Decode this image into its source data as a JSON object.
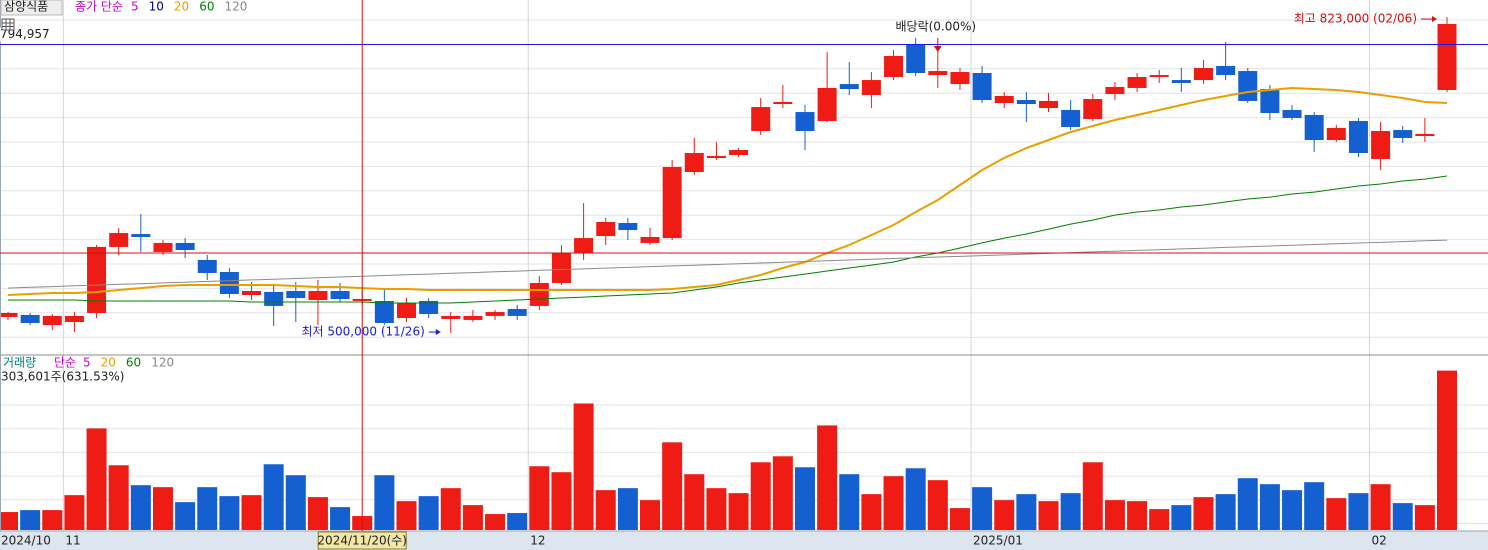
{
  "title": "삼양식품",
  "price_legend_label": "종가 단순",
  "chart_data": [
    {
      "type": "candlestick",
      "ylim": [
        478600,
        840400
      ],
      "up_color": "#ee1c14",
      "down_color": "#1560d0",
      "legend": [
        "5",
        "10",
        "20",
        "60",
        "120"
      ],
      "legend_colors": [
        "#cc00cc",
        "#000080",
        "#e8a000",
        "#008000",
        "#8a8a8a"
      ],
      "open": [
        516400,
        518500,
        508200,
        511300,
        520500,
        588000,
        601200,
        582900,
        592100,
        574700,
        562400,
        538900,
        542000,
        543000,
        533800,
        543000,
        532800,
        532800,
        515400,
        532800,
        514400,
        513400,
        517500,
        524600,
        527700,
        551200,
        581800,
        599200,
        612500,
        592100,
        597100,
        664600,
        678900,
        682000,
        706500,
        734100,
        725900,
        716700,
        754500,
        743300,
        761700,
        795400,
        763700,
        754500,
        765800,
        735100,
        738200,
        730000,
        728000,
        718800,
        744300,
        750500,
        761700,
        758600,
        758600,
        773000,
        767800,
        749400,
        728000,
        722900,
        697300,
        716700,
        677900,
        707500,
        701400,
        748400
      ],
      "high": [
        521500,
        520500,
        519500,
        521500,
        590000,
        607400,
        621700,
        595100,
        597100,
        579800,
        566500,
        552200,
        549100,
        552200,
        554200,
        551200,
        544000,
        544000,
        535800,
        535800,
        521500,
        523600,
        523600,
        528700,
        558300,
        590000,
        632900,
        617600,
        617600,
        607400,
        676900,
        699400,
        695300,
        689100,
        740200,
        753500,
        733100,
        787300,
        777000,
        766800,
        789300,
        801600,
        791300,
        770900,
        773000,
        746400,
        746400,
        745400,
        738200,
        744300,
        756600,
        765800,
        768900,
        770900,
        779100,
        797500,
        770900,
        753500,
        733100,
        725900,
        712700,
        719800,
        715700,
        711600,
        719800,
        823000
      ],
      "low": [
        513400,
        508200,
        503100,
        501100,
        515400,
        579800,
        582900,
        579800,
        576700,
        554200,
        535800,
        533800,
        507200,
        511300,
        508200,
        531700,
        528700,
        508200,
        511300,
        515400,
        500000,
        511300,
        513400,
        513400,
        523600,
        549100,
        574700,
        590000,
        595100,
        590000,
        595100,
        661500,
        676900,
        679900,
        702400,
        730000,
        687100,
        715700,
        743300,
        730000,
        758600,
        762700,
        750500,
        748400,
        735100,
        730000,
        715700,
        725900,
        707500,
        716700,
        738200,
        746400,
        755600,
        746400,
        754500,
        758600,
        735100,
        717800,
        717800,
        685100,
        695300,
        679900,
        666700,
        694300,
        695300,
        746400
      ],
      "close": [
        520500,
        510300,
        517500,
        517500,
        588000,
        602200,
        598200,
        592100,
        584900,
        561400,
        539900,
        543000,
        527700,
        535800,
        543000,
        534800,
        534800,
        510300,
        530700,
        519500,
        517500,
        517500,
        521500,
        517500,
        551200,
        581800,
        597100,
        613500,
        605300,
        598200,
        669700,
        684000,
        681000,
        687100,
        731000,
        736200,
        706500,
        750500,
        749400,
        758600,
        783200,
        765800,
        767800,
        766800,
        738200,
        742300,
        734100,
        737200,
        710600,
        739200,
        751500,
        761700,
        763700,
        755600,
        770900,
        763700,
        737200,
        724900,
        719800,
        697300,
        709600,
        684000,
        706500,
        699400,
        703500,
        815900
      ],
      "ma_lines": [
        {
          "legend": 2,
          "values": [
            538900,
            539900,
            540900,
            540900,
            542000,
            544000,
            546000,
            548100,
            549100,
            549100,
            549100,
            549100,
            549100,
            548100,
            547100,
            547100,
            546000,
            545000,
            545000,
            544000,
            544000,
            544000,
            544000,
            544000,
            544000,
            544000,
            544000,
            544000,
            544000,
            544000,
            545000,
            547100,
            549100,
            554200,
            559300,
            566500,
            572600,
            581800,
            590000,
            600200,
            610400,
            623700,
            636000,
            651300,
            666700,
            678900,
            689100,
            697300,
            705500,
            711600,
            717800,
            722900,
            728000,
            733100,
            738200,
            742300,
            746400,
            748400,
            750500,
            749400,
            748400,
            746400,
            743300,
            740200,
            736200,
            735100
          ]
        },
        {
          "legend": 3,
          "values": [
            533800,
            533800,
            533800,
            533800,
            532800,
            532800,
            532800,
            532800,
            532800,
            532800,
            532800,
            531700,
            531700,
            531700,
            531700,
            531700,
            531700,
            530700,
            530700,
            530700,
            530700,
            531700,
            532800,
            533800,
            534800,
            535800,
            536800,
            537900,
            538900,
            539900,
            540900,
            544000,
            547100,
            551200,
            554200,
            557300,
            560300,
            563400,
            566500,
            569500,
            572600,
            577700,
            581800,
            586900,
            592100,
            597100,
            601200,
            606300,
            611400,
            615500,
            620600,
            623700,
            625800,
            628800,
            630900,
            633900,
            637000,
            639000,
            642100,
            644100,
            647200,
            650300,
            652300,
            655400,
            657400,
            660500
          ]
        },
        {
          "legend": 4,
          "values": [
            546000,
            546800,
            547500,
            548300,
            549000,
            549800,
            550500,
            551300,
            552000,
            552800,
            553500,
            554300,
            555000,
            555800,
            556600,
            557300,
            558100,
            558800,
            559600,
            560300,
            561100,
            561800,
            562600,
            563300,
            564100,
            564900,
            565600,
            566400,
            567100,
            567900,
            568600,
            569400,
            570100,
            570900,
            571600,
            572400,
            573100,
            573900,
            574700,
            575400,
            576200,
            576900,
            577700,
            578400,
            579200,
            579900,
            580700,
            581400,
            582200,
            583000,
            583700,
            584500,
            585200,
            586000,
            586700,
            587500,
            588200,
            589000,
            589700,
            590500,
            591200,
            592000,
            592700,
            593500,
            594300,
            595000
          ]
        }
      ],
      "x_labels": [
        {
          "label": "2024/10",
          "at": 0
        },
        {
          "label": "11",
          "at": 3
        },
        {
          "label": "12",
          "at": 24
        },
        {
          "label": "2025/01",
          "at": 44
        },
        {
          "label": "02",
          "at": 62
        }
      ],
      "high_label": {
        "text": "최고 823,000 (02/06)",
        "at": 65
      },
      "low_label": {
        "text": "최저 500,000 (11/26)",
        "at": 20
      },
      "dividend_label": {
        "text": "배당락(0.00%)",
        "at": 42
      },
      "cursor_value": {
        "value": 794957,
        "label": "794,957"
      },
      "crosshair": {
        "index": 16,
        "price": 581800,
        "date": "2024/11/20(수)"
      }
    },
    {
      "type": "bar",
      "title": "거래량",
      "legend_label": "단순",
      "legend": [
        "5",
        "20",
        "60",
        "120"
      ],
      "legend_colors": [
        "#cc00cc",
        "#e8a000",
        "#008000",
        "#8a8a8a"
      ],
      "ylim": [
        0,
        320000
      ],
      "values": [
        34200,
        37900,
        37900,
        66400,
        193500,
        123300,
        85400,
        81600,
        53100,
        81600,
        64500,
        66400,
        125200,
        104400,
        62600,
        43600,
        26600,
        104400,
        55000,
        64500,
        79700,
        47400,
        30400,
        32300,
        121400,
        110100,
        241000,
        75900,
        79700,
        56900,
        167000,
        106300,
        79700,
        70200,
        129000,
        140400,
        119500,
        199200,
        106300,
        68300,
        102500,
        117600,
        94900,
        41700,
        81600,
        56900,
        68300,
        55000,
        70200,
        129000,
        56900,
        55000,
        39800,
        47400,
        62600,
        68300,
        98700,
        87300,
        75900,
        91100,
        60700,
        70200,
        87300,
        51200,
        47400,
        303601
      ],
      "current_label": "303,601주(631.53%)"
    }
  ]
}
